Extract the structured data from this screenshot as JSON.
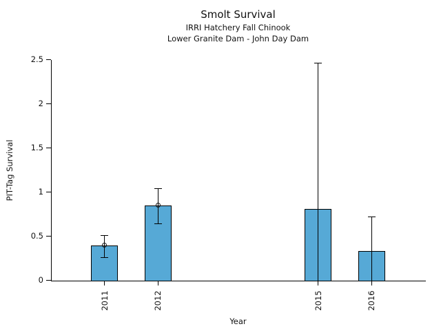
{
  "chart_data": {
    "type": "bar",
    "title": "Smolt Survival",
    "subtitle1": "IRRI Hatchery Fall Chinook",
    "subtitle2": "Lower Granite Dam - John Day Dam",
    "xlabel": "Year",
    "ylabel": "PIT-Tag Survival",
    "categories": [
      "2011",
      "2012",
      "2015",
      "2016"
    ],
    "x": [
      2011,
      2012,
      2015,
      2016
    ],
    "values": [
      0.4,
      0.85,
      0.81,
      0.33
    ],
    "error_low": [
      0.26,
      0.64,
      0.0,
      0.0
    ],
    "error_high": [
      0.51,
      1.04,
      2.46,
      0.72
    ],
    "point_markers": [
      true,
      true,
      false,
      false
    ],
    "xlim": [
      2010,
      2017
    ],
    "ylim": [
      0,
      2.5
    ],
    "yticks": [
      0,
      0.5,
      1,
      1.5,
      2,
      2.5
    ],
    "ytick_labels": [
      "0",
      "0.5",
      "1",
      "1.5",
      "2",
      "2.5"
    ],
    "bar_width_years": 0.5,
    "bar_color": "#56A9D6",
    "bar_edge_color": "#000000",
    "grid": false,
    "legend": "none"
  }
}
